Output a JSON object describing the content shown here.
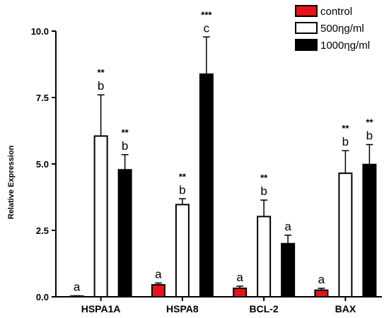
{
  "chart_data": {
    "type": "bar",
    "ylabel": "Relative Expression",
    "ylim": [
      0,
      10
    ],
    "yticks": [
      "0.0",
      "2.5",
      "5.0",
      "7.5",
      "10.0"
    ],
    "categories": [
      "HSPA1A",
      "HSPA8",
      "BCL-2",
      "BAX"
    ],
    "series": [
      {
        "name": "control",
        "color": "#e8131a",
        "values": [
          0.02,
          0.45,
          0.32,
          0.25
        ],
        "errors": [
          0.02,
          0.07,
          0.08,
          0.07
        ],
        "letters": [
          "a",
          "a",
          "a",
          "a"
        ],
        "stars": [
          "",
          "",
          "",
          ""
        ]
      },
      {
        "name": "500ηg/ml",
        "color": "#ffffff",
        "values": [
          6.05,
          3.47,
          3.02,
          4.65
        ],
        "errors": [
          1.55,
          0.22,
          0.62,
          0.85
        ],
        "letters": [
          "b",
          "b",
          "b",
          "b"
        ],
        "stars": [
          "**",
          "**",
          "**",
          "**"
        ]
      },
      {
        "name": "1000ηg/ml",
        "color": "#000000",
        "values": [
          4.78,
          8.38,
          2.0,
          4.98
        ],
        "errors": [
          0.57,
          1.4,
          0.32,
          0.75
        ],
        "letters": [
          "b",
          "c",
          "a",
          "b"
        ],
        "stars": [
          "**",
          "***",
          "",
          "**"
        ]
      }
    ],
    "grid": false,
    "legend_position": "top-right"
  }
}
